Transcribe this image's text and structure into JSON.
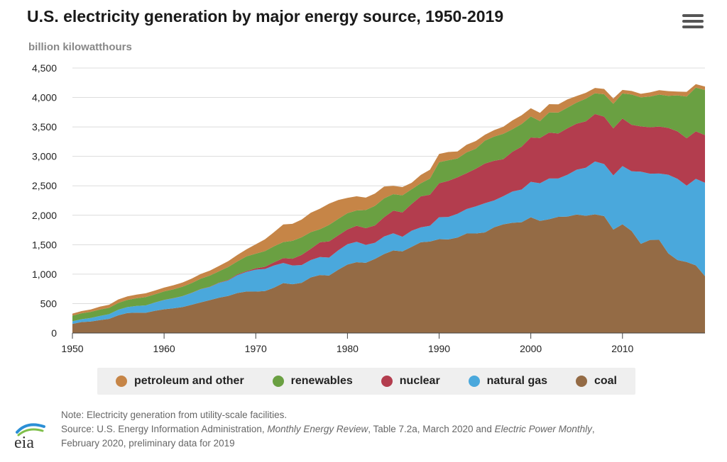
{
  "header": {
    "title": "U.S. electricity generation by major energy source, 1950-2019",
    "units": "billion kilowatthours",
    "menu_icon": "hamburger-menu-icon"
  },
  "legend": [
    {
      "label": "petroleum and other",
      "color": "#c68547"
    },
    {
      "label": "renewables",
      "color": "#6aa042"
    },
    {
      "label": "nuclear",
      "color": "#b33d4e"
    },
    {
      "label": "natural gas",
      "color": "#4aa8dc"
    },
    {
      "label": "coal",
      "color": "#946b45"
    }
  ],
  "footer": {
    "logo_text": "eia",
    "note": "Note: Electricity generation from utility-scale facilities.",
    "source_prefix": "Source: U.S. Energy Information Administration, ",
    "source_italic_1": "Monthly Energy Review",
    "source_middle": ", Table 7.2a, March 2020 and ",
    "source_italic_2": "Electric Power Monthly",
    "source_suffix": ",",
    "source_line2": "February 2020, preliminary data for 2019"
  },
  "chart_data": {
    "type": "area",
    "stacked": true,
    "title": "U.S. electricity generation by major energy source, 1950-2019",
    "ylabel": "billion kilowatthours",
    "xlim": [
      1950,
      2019
    ],
    "ylim": [
      0,
      4500
    ],
    "x_ticks": [
      1950,
      1960,
      1970,
      1980,
      1990,
      2000,
      2010
    ],
    "y_ticks": [
      0,
      500,
      1000,
      1500,
      2000,
      2500,
      3000,
      3500,
      4000,
      4500
    ],
    "y_tick_labels": [
      "0",
      "500",
      "1,000",
      "1,500",
      "2,000",
      "2,500",
      "3,000",
      "3,500",
      "4,000",
      "4,500"
    ],
    "grid": true,
    "legend_position": "bottom",
    "x": [
      1950,
      1951,
      1952,
      1953,
      1954,
      1955,
      1956,
      1957,
      1958,
      1959,
      1960,
      1961,
      1962,
      1963,
      1964,
      1965,
      1966,
      1967,
      1968,
      1969,
      1970,
      1971,
      1972,
      1973,
      1974,
      1975,
      1976,
      1977,
      1978,
      1979,
      1980,
      1981,
      1982,
      1983,
      1984,
      1985,
      1986,
      1987,
      1988,
      1989,
      1990,
      1991,
      1992,
      1993,
      1994,
      1995,
      1996,
      1997,
      1998,
      1999,
      2000,
      2001,
      2002,
      2003,
      2004,
      2005,
      2006,
      2007,
      2008,
      2009,
      2010,
      2011,
      2012,
      2013,
      2014,
      2015,
      2016,
      2017,
      2018,
      2019
    ],
    "series": [
      {
        "name": "coal",
        "color": "#946b45",
        "values": [
          155,
          187,
          195,
          220,
          240,
          301,
          340,
          346,
          344,
          378,
          403,
          420,
          440,
          480,
          520,
          560,
          600,
          630,
          680,
          706,
          704,
          713,
          771,
          848,
          828,
          853,
          944,
          985,
          976,
          1075,
          1162,
          1203,
          1192,
          1259,
          1342,
          1402,
          1386,
          1464,
          1541,
          1554,
          1594,
          1590,
          1621,
          1690,
          1690,
          1709,
          1796,
          1845,
          1873,
          1881,
          1966,
          1904,
          1933,
          1974,
          1978,
          2013,
          1991,
          2016,
          1986,
          1756,
          1847,
          1733,
          1514,
          1581,
          1582,
          1352,
          1240,
          1206,
          1149,
          966
        ]
      },
      {
        "name": "natural gas",
        "color": "#4aa8dc",
        "values": [
          45,
          48,
          60,
          70,
          80,
          95,
          100,
          115,
          125,
          140,
          158,
          170,
          185,
          200,
          225,
          222,
          251,
          264,
          304,
          333,
          373,
          374,
          376,
          341,
          320,
          300,
          295,
          306,
          305,
          329,
          346,
          346,
          305,
          274,
          297,
          292,
          249,
          273,
          253,
          267,
          373,
          381,
          404,
          415,
          460,
          496,
          455,
          479,
          531,
          556,
          601,
          639,
          691,
          650,
          710,
          761,
          816,
          897,
          883,
          921,
          988,
          1013,
          1226,
          1124,
          1127,
          1335,
          1379,
          1296,
          1469,
          1586
        ]
      },
      {
        "name": "nuclear",
        "color": "#b33d4e",
        "values": [
          0,
          0,
          0,
          0,
          0,
          0,
          0,
          0,
          1,
          1,
          1,
          2,
          2,
          3,
          3,
          4,
          6,
          8,
          13,
          14,
          22,
          38,
          54,
          83,
          114,
          173,
          191,
          251,
          276,
          255,
          251,
          273,
          283,
          294,
          328,
          384,
          414,
          455,
          527,
          529,
          577,
          613,
          619,
          610,
          640,
          673,
          675,
          629,
          674,
          728,
          754,
          769,
          780,
          764,
          789,
          782,
          787,
          806,
          806,
          799,
          807,
          790,
          769,
          789,
          797,
          797,
          806,
          805,
          807,
          809
        ]
      },
      {
        "name": "renewables",
        "color": "#6aa042",
        "values": [
          96,
          100,
          105,
          108,
          108,
          116,
          122,
          130,
          140,
          138,
          145,
          150,
          160,
          165,
          175,
          190,
          193,
          220,
          220,
          250,
          248,
          266,
          273,
          272,
          303,
          300,
          283,
          220,
          280,
          280,
          276,
          260,
          309,
          332,
          321,
          281,
          290,
          249,
          223,
          273,
          357,
          350,
          320,
          353,
          340,
          390,
          410,
          430,
          383,
          384,
          356,
          287,
          342,
          355,
          350,
          358,
          385,
          353,
          380,
          417,
          427,
          514,
          493,
          522,
          543,
          544,
          610,
          708,
          742,
          765
        ]
      },
      {
        "name": "petroleum and other",
        "color": "#c68547",
        "values": [
          34,
          38,
          40,
          50,
          52,
          58,
          60,
          62,
          65,
          65,
          65,
          68,
          70,
          75,
          80,
          85,
          90,
          100,
          110,
          120,
          160,
          200,
          240,
          300,
          290,
          300,
          330,
          350,
          360,
          320,
          260,
          240,
          210,
          210,
          200,
          140,
          140,
          110,
          140,
          150,
          140,
          140,
          120,
          130,
          130,
          100,
          110,
          120,
          150,
          150,
          140,
          140,
          140,
          140,
          140,
          110,
          100,
          90,
          90,
          90,
          60,
          60,
          60,
          70,
          75,
          80,
          65,
          80,
          60,
          60
        ]
      }
    ]
  }
}
